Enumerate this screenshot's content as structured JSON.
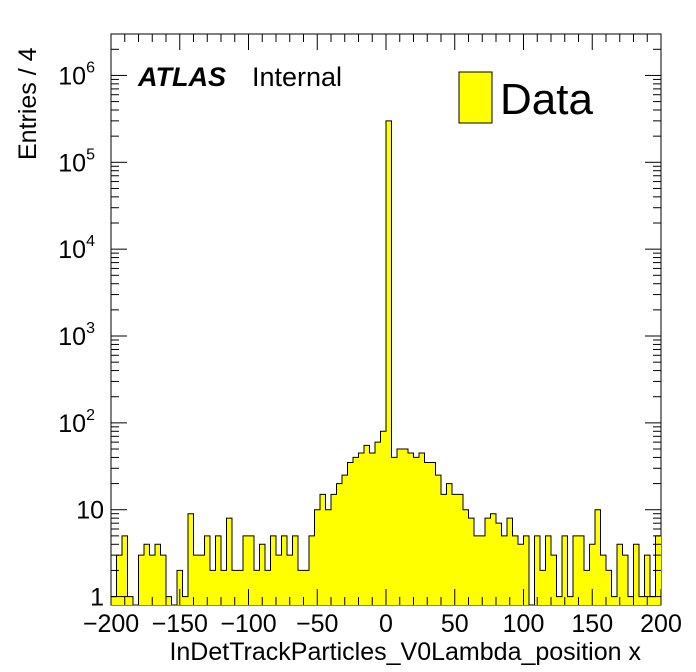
{
  "chart_data": {
    "type": "bar",
    "style": "histogram",
    "ylog": true,
    "xlabel": "InDetTrackParticles_V0Lambda_position x",
    "ylabel": "Entries / 4",
    "xlim": [
      -200,
      200
    ],
    "ylim": [
      0.8,
      3000000
    ],
    "bin_width": 4,
    "x_ticks": [
      "−200",
      "−150",
      "−100",
      "−50",
      "0",
      "50",
      "100",
      "150",
      "200"
    ],
    "y_ticks": [
      {
        "value": 1,
        "base": "1",
        "exp": ""
      },
      {
        "value": 10,
        "base": "10",
        "exp": ""
      },
      {
        "value": 100,
        "base": "10",
        "exp": "2"
      },
      {
        "value": 1000,
        "base": "10",
        "exp": "3"
      },
      {
        "value": 10000,
        "base": "10",
        "exp": "4"
      },
      {
        "value": 100000,
        "base": "10",
        "exp": "5"
      },
      {
        "value": 1000000,
        "base": "10",
        "exp": "6"
      }
    ],
    "fill_color": "#ffff00",
    "line_color": "#000000",
    "series": [
      {
        "name": "Data",
        "x_low_edges": [
          -200,
          -196,
          -192,
          -188,
          -184,
          -180,
          -176,
          -172,
          -168,
          -164,
          -160,
          -156,
          -152,
          -148,
          -144,
          -140,
          -136,
          -132,
          -128,
          -124,
          -120,
          -116,
          -112,
          -108,
          -104,
          -100,
          -96,
          -92,
          -88,
          -84,
          -80,
          -76,
          -72,
          -68,
          -64,
          -60,
          -56,
          -52,
          -48,
          -44,
          -40,
          -36,
          -32,
          -28,
          -24,
          -20,
          -16,
          -12,
          -8,
          -4,
          0,
          4,
          8,
          12,
          16,
          20,
          24,
          28,
          32,
          36,
          40,
          44,
          48,
          52,
          56,
          60,
          64,
          68,
          72,
          76,
          80,
          84,
          88,
          92,
          96,
          100,
          104,
          108,
          112,
          116,
          120,
          124,
          128,
          132,
          136,
          140,
          144,
          148,
          152,
          156,
          160,
          164,
          168,
          172,
          176,
          180,
          184,
          188,
          192,
          196
        ],
        "values": [
          1,
          3,
          5,
          1,
          0,
          3,
          4,
          3,
          4,
          3,
          1,
          0,
          2,
          1,
          9,
          3,
          3,
          5,
          2,
          5,
          2,
          8,
          2,
          2,
          5,
          5,
          2,
          4,
          2,
          5,
          3,
          5,
          3,
          5,
          2,
          2,
          5,
          10,
          15,
          10,
          15,
          20,
          25,
          35,
          40,
          45,
          55,
          45,
          60,
          80,
          300000,
          40,
          50,
          50,
          45,
          40,
          45,
          35,
          35,
          25,
          15,
          20,
          15,
          15,
          10,
          8,
          5,
          5,
          8,
          9,
          7,
          5,
          8,
          5,
          4,
          5,
          0,
          5,
          2,
          5,
          3,
          1,
          5,
          1,
          5,
          5,
          2,
          4,
          10,
          3,
          2,
          1,
          4,
          3,
          1,
          4,
          1,
          3,
          1,
          5
        ]
      }
    ],
    "legend": {
      "placement": "top-right",
      "entries": [
        "Data"
      ]
    },
    "annotations": {
      "experiment": "ATLAS",
      "status": "Internal"
    }
  }
}
